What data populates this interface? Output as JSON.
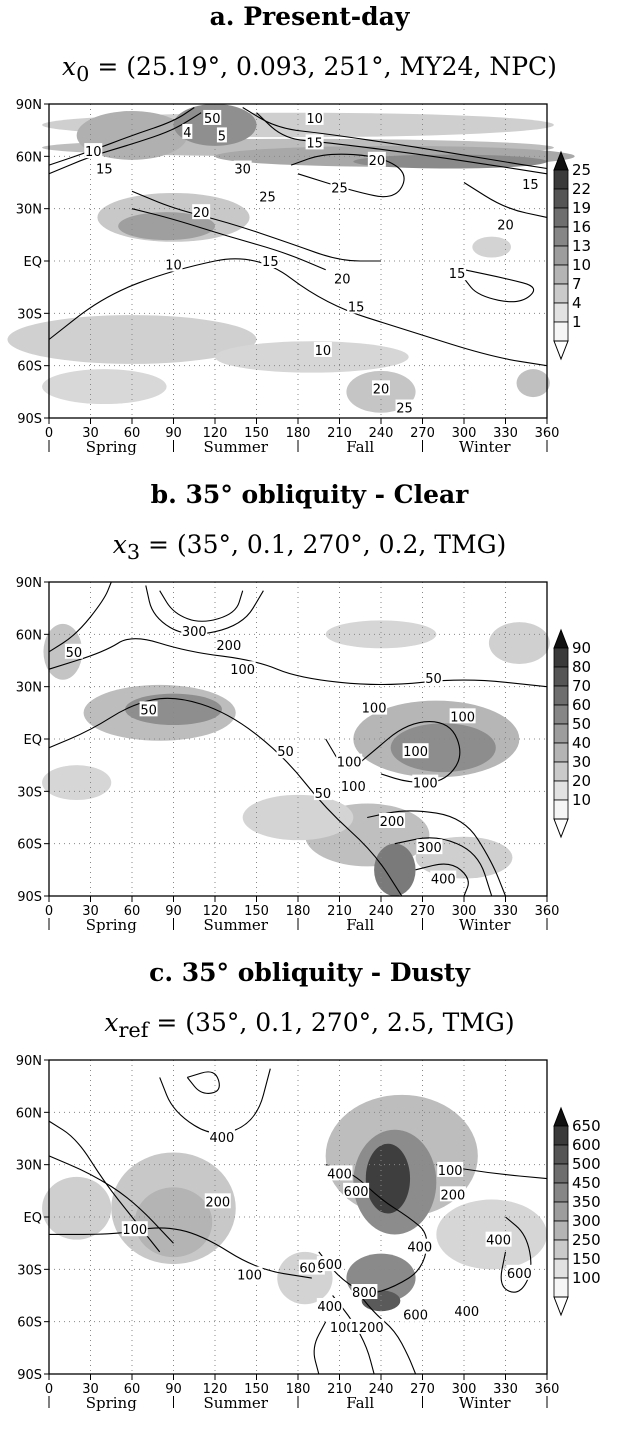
{
  "chart_data": [
    {
      "type": "heatmap",
      "title": "a. Present-day",
      "formula": {
        "var": "x",
        "sub": "0",
        "rest": " = (25.19°, 0.093, 251°, MY24, NPC)"
      },
      "x_ticks": [
        "0",
        "30",
        "60",
        "90",
        "120",
        "150",
        "180",
        "210",
        "240",
        "270",
        "300",
        "330",
        "360"
      ],
      "y_ticks": [
        "90N",
        "60N",
        "30N",
        "EQ",
        "30S",
        "60S",
        "90S"
      ],
      "xlim": [
        0,
        360
      ],
      "ylim": [
        -90,
        90
      ],
      "seasons": [
        "Spring",
        "Summer",
        "Fall",
        "Winter"
      ],
      "grid": true,
      "colorbar": [
        "25",
        "22",
        "19",
        "16",
        "13",
        "10",
        "7",
        "4",
        "1"
      ],
      "contour_labels": [
        {
          "text": "10",
          "x": 32,
          "y": 63
        },
        {
          "text": "15",
          "x": 40,
          "y": 53
        },
        {
          "text": "4",
          "x": 100,
          "y": 74
        },
        {
          "text": "50",
          "x": 118,
          "y": 82
        },
        {
          "text": "5",
          "x": 125,
          "y": 72
        },
        {
          "text": "30",
          "x": 140,
          "y": 53
        },
        {
          "text": "10",
          "x": 192,
          "y": 82
        },
        {
          "text": "15",
          "x": 192,
          "y": 68
        },
        {
          "text": "20",
          "x": 110,
          "y": 28
        },
        {
          "text": "25",
          "x": 158,
          "y": 37
        },
        {
          "text": "25",
          "x": 210,
          "y": 42
        },
        {
          "text": "15",
          "x": 160,
          "y": 0
        },
        {
          "text": "10",
          "x": 90,
          "y": -2
        },
        {
          "text": "20",
          "x": 212,
          "y": -10
        },
        {
          "text": "20",
          "x": 237,
          "y": 58
        },
        {
          "text": "20",
          "x": 330,
          "y": 21
        },
        {
          "text": "15",
          "x": 348,
          "y": 44
        },
        {
          "text": "15",
          "x": 295,
          "y": -7
        },
        {
          "text": "15",
          "x": 222,
          "y": -26
        },
        {
          "text": "10",
          "x": 198,
          "y": -51
        },
        {
          "text": "20",
          "x": 240,
          "y": -73
        },
        {
          "text": "25",
          "x": 257,
          "y": -84
        }
      ]
    },
    {
      "type": "heatmap",
      "title": "b. 35° obliquity - Clear",
      "formula": {
        "var": "x",
        "sub": "3",
        "rest": " = (35°, 0.1, 270°, 0.2, TMG)"
      },
      "x_ticks": [
        "0",
        "30",
        "60",
        "90",
        "120",
        "150",
        "180",
        "210",
        "240",
        "270",
        "300",
        "330",
        "360"
      ],
      "y_ticks": [
        "90N",
        "60N",
        "30N",
        "EQ",
        "30S",
        "60S",
        "90S"
      ],
      "xlim": [
        0,
        360
      ],
      "ylim": [
        -90,
        90
      ],
      "seasons": [
        "Spring",
        "Summer",
        "Fall",
        "Winter"
      ],
      "grid": true,
      "colorbar": [
        "90",
        "80",
        "70",
        "60",
        "50",
        "40",
        "30",
        "20",
        "10"
      ],
      "contour_labels": [
        {
          "text": "50",
          "x": 18,
          "y": 50
        },
        {
          "text": "300",
          "x": 105,
          "y": 62
        },
        {
          "text": "200",
          "x": 130,
          "y": 54
        },
        {
          "text": "100",
          "x": 140,
          "y": 40
        },
        {
          "text": "50",
          "x": 72,
          "y": 17
        },
        {
          "text": "50",
          "x": 171,
          "y": -7
        },
        {
          "text": "50",
          "x": 198,
          "y": -31
        },
        {
          "text": "100",
          "x": 235,
          "y": 18
        },
        {
          "text": "100",
          "x": 217,
          "y": -13
        },
        {
          "text": "100",
          "x": 220,
          "y": -27
        },
        {
          "text": "100",
          "x": 265,
          "y": -7
        },
        {
          "text": "100",
          "x": 272,
          "y": -25
        },
        {
          "text": "100",
          "x": 299,
          "y": 13
        },
        {
          "text": "50",
          "x": 278,
          "y": 35
        },
        {
          "text": "200",
          "x": 248,
          "y": -47
        },
        {
          "text": "300",
          "x": 275,
          "y": -62
        },
        {
          "text": "400",
          "x": 285,
          "y": -80
        }
      ]
    },
    {
      "type": "heatmap",
      "title": "c. 35° obliquity - Dusty",
      "formula": {
        "var": "x",
        "sub": "ref",
        "rest": " = (35°, 0.1, 270°, 2.5, TMG)"
      },
      "x_ticks": [
        "0",
        "30",
        "60",
        "90",
        "120",
        "150",
        "180",
        "210",
        "240",
        "270",
        "300",
        "330",
        "360"
      ],
      "y_ticks": [
        "90N",
        "60N",
        "30N",
        "EQ",
        "30S",
        "60S",
        "90S"
      ],
      "xlim": [
        0,
        360
      ],
      "ylim": [
        -90,
        90
      ],
      "seasons": [
        "Spring",
        "Summer",
        "Fall",
        "Winter"
      ],
      "grid": true,
      "colorbar": [
        "650",
        "600",
        "500",
        "450",
        "350",
        "300",
        "250",
        "150",
        "100"
      ],
      "contour_labels": [
        {
          "text": "400",
          "x": 125,
          "y": 46
        },
        {
          "text": "200",
          "x": 122,
          "y": 9
        },
        {
          "text": "100",
          "x": 62,
          "y": -7
        },
        {
          "text": "100",
          "x": 145,
          "y": -33
        },
        {
          "text": "400",
          "x": 210,
          "y": 25
        },
        {
          "text": "600",
          "x": 222,
          "y": 15
        },
        {
          "text": "100",
          "x": 290,
          "y": 27
        },
        {
          "text": "200",
          "x": 292,
          "y": 13
        },
        {
          "text": "600",
          "x": 190,
          "y": -29
        },
        {
          "text": "600",
          "x": 203,
          "y": -27
        },
        {
          "text": "400",
          "x": 203,
          "y": -51
        },
        {
          "text": "800",
          "x": 228,
          "y": -43
        },
        {
          "text": "400",
          "x": 268,
          "y": -17
        },
        {
          "text": "600",
          "x": 265,
          "y": -56
        },
        {
          "text": "100",
          "x": 212,
          "y": -63
        },
        {
          "text": "1200",
          "x": 230,
          "y": -63
        },
        {
          "text": "400",
          "x": 325,
          "y": -13
        },
        {
          "text": "600",
          "x": 340,
          "y": -32
        },
        {
          "text": "400",
          "x": 302,
          "y": -54
        }
      ]
    }
  ]
}
